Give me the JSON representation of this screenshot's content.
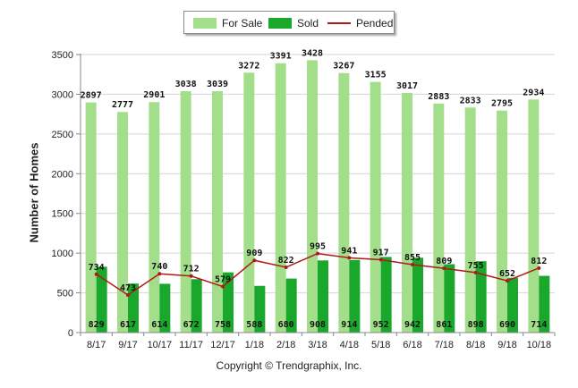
{
  "legend": {
    "for_sale": "For Sale",
    "sold": "Sold",
    "pended": "Pended"
  },
  "footer": {
    "copyright": "Copyright © Trendgraphix, Inc."
  },
  "colors": {
    "for_sale": "#a3df8b",
    "sold": "#19a82c",
    "pended": "#b01818",
    "grid": "#d4d4d4"
  },
  "chart_data": {
    "type": "bar",
    "ylabel": "Number of Homes",
    "ylim": [
      0,
      3500
    ],
    "yticks": [
      0,
      500,
      1000,
      1500,
      2000,
      2500,
      3000,
      3500
    ],
    "grid": true,
    "legend_position": "top-center",
    "categories": [
      "8/17",
      "9/17",
      "10/17",
      "11/17",
      "12/17",
      "1/18",
      "2/18",
      "3/18",
      "4/18",
      "5/18",
      "6/18",
      "7/18",
      "8/18",
      "9/18",
      "10/18"
    ],
    "series": [
      {
        "name": "For Sale",
        "type": "bar",
        "values": [
          2897,
          2777,
          2901,
          3038,
          3039,
          3272,
          3391,
          3428,
          3267,
          3155,
          3017,
          2883,
          2833,
          2795,
          2934
        ]
      },
      {
        "name": "Sold",
        "type": "bar",
        "values": [
          829,
          617,
          614,
          672,
          758,
          588,
          680,
          908,
          914,
          952,
          942,
          861,
          898,
          690,
          714
        ]
      },
      {
        "name": "Pended",
        "type": "line",
        "values": [
          734,
          473,
          740,
          712,
          579,
          909,
          822,
          995,
          941,
          917,
          855,
          809,
          755,
          652,
          812
        ]
      }
    ]
  }
}
